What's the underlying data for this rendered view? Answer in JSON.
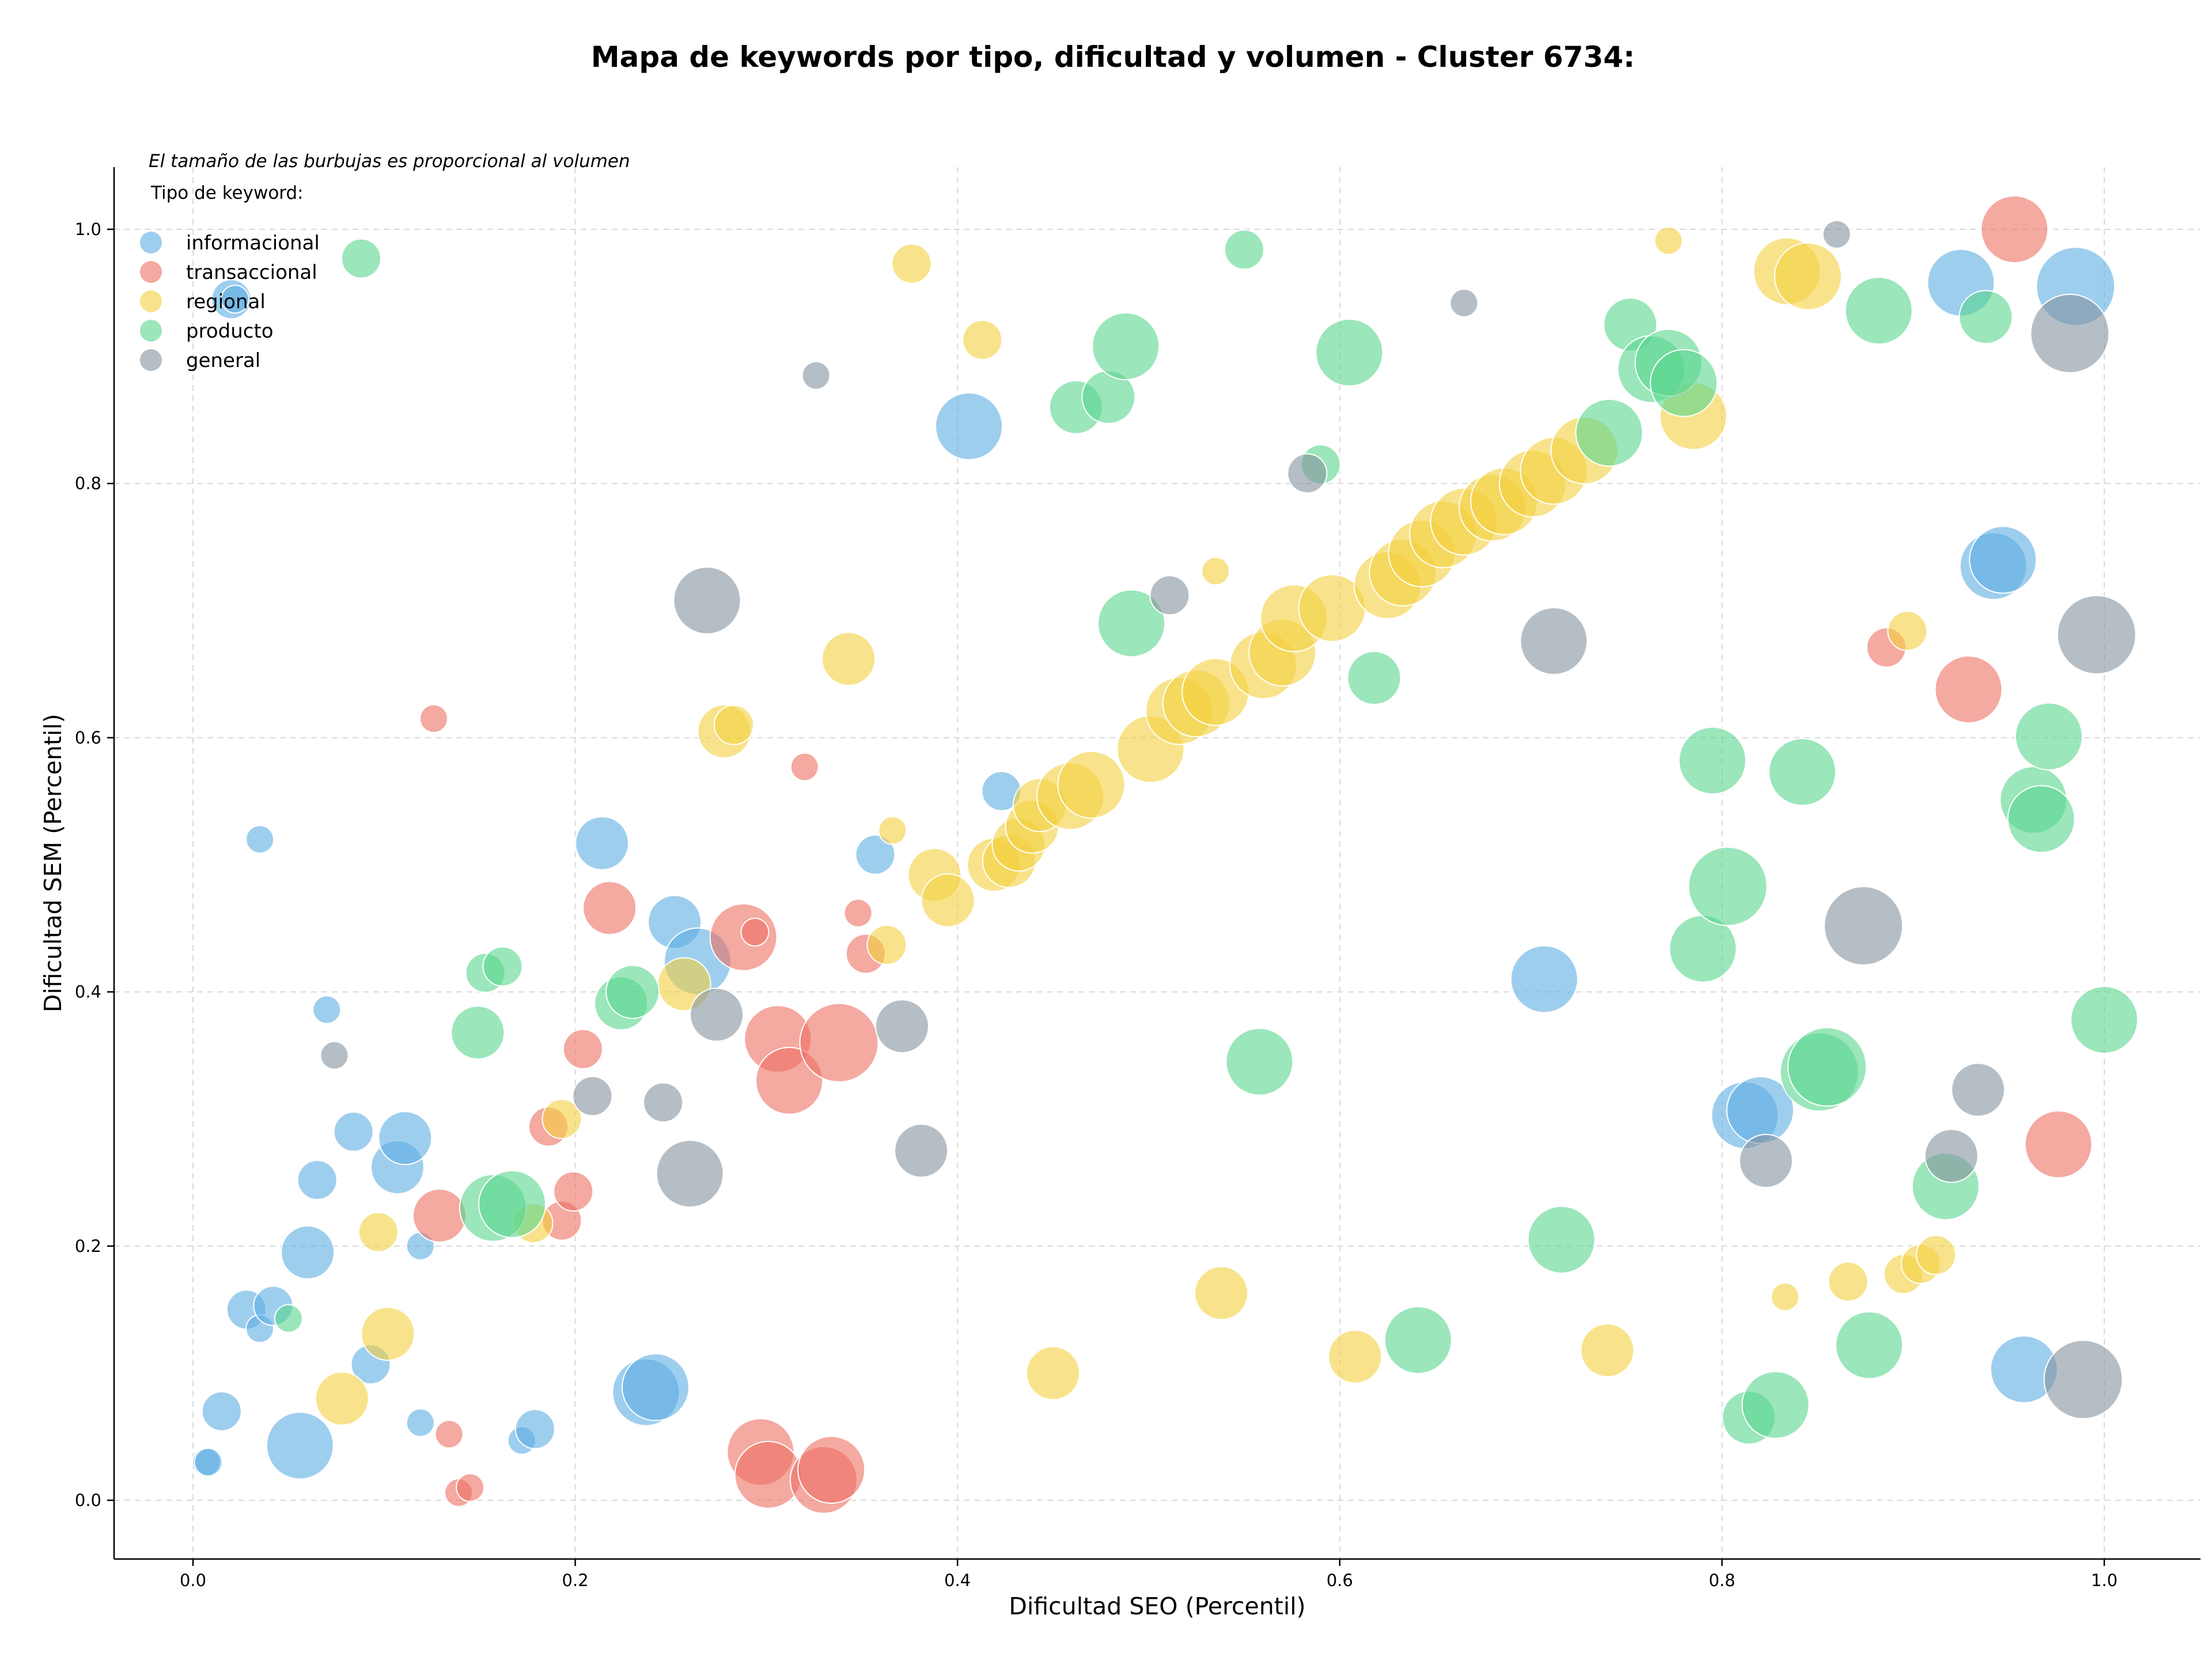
{
  "chart_data": {
    "type": "scatter",
    "title": "Mapa de keywords por tipo, dificultad y volumen - Cluster 6734:",
    "subtitle": "El tamaño de las burbujas es proporcional al volumen",
    "xlabel": "Dificultad SEO (Percentil)",
    "ylabel": "Dificultad SEM (Percentil)",
    "xlim": [
      -0.05,
      1.05
    ],
    "ylim": [
      -0.045,
      1.05
    ],
    "xticks": [
      "0.0",
      "0.2",
      "0.4",
      "0.6",
      "0.8",
      "1.0"
    ],
    "yticks": [
      "0.0",
      "0.2",
      "0.4",
      "0.6",
      "0.8",
      "1.0"
    ],
    "grid": true,
    "legend_title": "Tipo de keyword:",
    "legend_position": "top-left",
    "series": [
      {
        "name": "informacional",
        "color": "#5DADE2",
        "points": [
          [
            0.007,
            0.03,
            1
          ],
          [
            0.008,
            0.03,
            1
          ],
          [
            0.015,
            0.07,
            2
          ],
          [
            0.02,
            0.945,
            2
          ],
          [
            0.022,
            0.945,
            1
          ],
          [
            0.028,
            0.15,
            2
          ],
          [
            0.035,
            0.135,
            1
          ],
          [
            0.035,
            0.52,
            1
          ],
          [
            0.042,
            0.153,
            2
          ],
          [
            0.056,
            0.043,
            4
          ],
          [
            0.06,
            0.195,
            3
          ],
          [
            0.065,
            0.252,
            2
          ],
          [
            0.07,
            0.386,
            1
          ],
          [
            0.084,
            0.29,
            2
          ],
          [
            0.093,
            0.107,
            2
          ],
          [
            0.107,
            0.262,
            3
          ],
          [
            0.111,
            0.285,
            3
          ],
          [
            0.119,
            0.2,
            1
          ],
          [
            0.119,
            0.061,
            1
          ],
          [
            0.172,
            0.047,
            1
          ],
          [
            0.179,
            0.056,
            2
          ],
          [
            0.214,
            0.517,
            3
          ],
          [
            0.237,
            0.085,
            4
          ],
          [
            0.242,
            0.089,
            4
          ],
          [
            0.252,
            0.455,
            3
          ],
          [
            0.264,
            0.424,
            4
          ],
          [
            0.357,
            0.508,
            2
          ],
          [
            0.406,
            0.845,
            4
          ],
          [
            0.423,
            0.558,
            2
          ],
          [
            0.707,
            0.41,
            4
          ],
          [
            0.812,
            0.303,
            4
          ],
          [
            0.82,
            0.307,
            4
          ],
          [
            0.925,
            0.958,
            4
          ],
          [
            0.942,
            0.735,
            4
          ],
          [
            0.947,
            0.74,
            4
          ],
          [
            0.958,
            0.103,
            4
          ],
          [
            0.985,
            0.955,
            5
          ]
        ]
      },
      {
        "name": "transaccional",
        "color": "#EC7063",
        "points": [
          [
            0.126,
            0.615,
            1
          ],
          [
            0.129,
            0.224,
            3
          ],
          [
            0.134,
            0.052,
            1
          ],
          [
            0.139,
            0.006,
            1
          ],
          [
            0.145,
            0.01,
            1
          ],
          [
            0.186,
            0.294,
            2
          ],
          [
            0.193,
            0.22,
            2
          ],
          [
            0.199,
            0.243,
            2
          ],
          [
            0.204,
            0.355,
            2
          ],
          [
            0.218,
            0.466,
            3
          ],
          [
            0.288,
            0.443,
            4
          ],
          [
            0.294,
            0.447,
            1
          ],
          [
            0.297,
            0.038,
            4
          ],
          [
            0.301,
            0.02,
            4
          ],
          [
            0.306,
            0.363,
            4
          ],
          [
            0.312,
            0.33,
            4
          ],
          [
            0.32,
            0.577,
            1
          ],
          [
            0.33,
            0.016,
            4
          ],
          [
            0.334,
            0.024,
            4
          ],
          [
            0.338,
            0.36,
            5
          ],
          [
            0.348,
            0.462,
            1
          ],
          [
            0.352,
            0.43,
            2
          ],
          [
            0.886,
            0.671,
            2
          ],
          [
            0.929,
            0.638,
            4
          ],
          [
            0.953,
            1.0,
            4
          ],
          [
            0.976,
            0.28,
            4
          ]
        ]
      },
      {
        "name": "regional",
        "color": "#F4D03F",
        "points": [
          [
            0.078,
            0.08,
            3
          ],
          [
            0.097,
            0.211,
            2
          ],
          [
            0.102,
            0.131,
            3
          ],
          [
            0.178,
            0.218,
            2
          ],
          [
            0.193,
            0.3,
            2
          ],
          [
            0.257,
            0.406,
            3
          ],
          [
            0.278,
            0.605,
            3
          ],
          [
            0.283,
            0.61,
            2
          ],
          [
            0.343,
            0.662,
            3
          ],
          [
            0.363,
            0.437,
            2
          ],
          [
            0.366,
            0.527,
            1
          ],
          [
            0.376,
            0.973,
            2
          ],
          [
            0.388,
            0.492,
            3
          ],
          [
            0.395,
            0.472,
            3
          ],
          [
            0.413,
            0.913,
            2
          ],
          [
            0.419,
            0.5,
            3
          ],
          [
            0.427,
            0.503,
            3
          ],
          [
            0.432,
            0.516,
            3
          ],
          [
            0.439,
            0.53,
            3
          ],
          [
            0.443,
            0.547,
            3
          ],
          [
            0.45,
            0.1,
            3
          ],
          [
            0.459,
            0.554,
            4
          ],
          [
            0.47,
            0.563,
            4
          ],
          [
            0.501,
            0.591,
            4
          ],
          [
            0.516,
            0.621,
            4
          ],
          [
            0.525,
            0.627,
            4
          ],
          [
            0.535,
            0.636,
            4
          ],
          [
            0.535,
            0.731,
            1
          ],
          [
            0.538,
            0.163,
            3
          ],
          [
            0.56,
            0.657,
            4
          ],
          [
            0.57,
            0.667,
            4
          ],
          [
            0.576,
            0.694,
            4
          ],
          [
            0.596,
            0.702,
            4
          ],
          [
            0.608,
            0.113,
            3
          ],
          [
            0.625,
            0.72,
            4
          ],
          [
            0.633,
            0.73,
            4
          ],
          [
            0.643,
            0.745,
            4
          ],
          [
            0.654,
            0.76,
            4
          ],
          [
            0.665,
            0.77,
            4
          ],
          [
            0.68,
            0.781,
            4
          ],
          [
            0.686,
            0.786,
            4
          ],
          [
            0.701,
            0.8,
            4
          ],
          [
            0.712,
            0.81,
            4
          ],
          [
            0.728,
            0.826,
            4
          ],
          [
            0.74,
            0.118,
            3
          ],
          [
            0.772,
            0.991,
            1
          ],
          [
            0.785,
            0.853,
            4
          ],
          [
            0.834,
            0.967,
            4
          ],
          [
            0.845,
            0.963,
            4
          ],
          [
            0.833,
            0.16,
            1
          ],
          [
            0.866,
            0.172,
            2
          ],
          [
            0.895,
            0.178,
            2
          ],
          [
            0.897,
            0.684,
            2
          ],
          [
            0.904,
            0.186,
            2
          ],
          [
            0.912,
            0.193,
            2
          ]
        ]
      },
      {
        "name": "producto",
        "color": "#58D68D",
        "points": [
          [
            0.05,
            0.143,
            1
          ],
          [
            0.088,
            0.977,
            2
          ],
          [
            0.149,
            0.368,
            3
          ],
          [
            0.153,
            0.415,
            2
          ],
          [
            0.162,
            0.42,
            2
          ],
          [
            0.157,
            0.23,
            4
          ],
          [
            0.167,
            0.233,
            4
          ],
          [
            0.224,
            0.391,
            3
          ],
          [
            0.23,
            0.4,
            3
          ],
          [
            0.462,
            0.86,
            3
          ],
          [
            0.479,
            0.868,
            3
          ],
          [
            0.488,
            0.908,
            4
          ],
          [
            0.491,
            0.69,
            4
          ],
          [
            0.55,
            0.984,
            2
          ],
          [
            0.558,
            0.345,
            4
          ],
          [
            0.59,
            0.815,
            2
          ],
          [
            0.605,
            0.903,
            4
          ],
          [
            0.618,
            0.647,
            3
          ],
          [
            0.641,
            0.126,
            4
          ],
          [
            0.716,
            0.205,
            4
          ],
          [
            0.741,
            0.84,
            4
          ],
          [
            0.752,
            0.925,
            3
          ],
          [
            0.763,
            0.89,
            4
          ],
          [
            0.772,
            0.895,
            4
          ],
          [
            0.78,
            0.879,
            4
          ],
          [
            0.79,
            0.434,
            4
          ],
          [
            0.795,
            0.582,
            4
          ],
          [
            0.803,
            0.483,
            5
          ],
          [
            0.814,
            0.065,
            3
          ],
          [
            0.828,
            0.075,
            4
          ],
          [
            0.842,
            0.573,
            4
          ],
          [
            0.851,
            0.337,
            5
          ],
          [
            0.855,
            0.341,
            5
          ],
          [
            0.877,
            0.122,
            4
          ],
          [
            0.882,
            0.936,
            4
          ],
          [
            0.917,
            0.247,
            4
          ],
          [
            0.938,
            0.931,
            3
          ],
          [
            0.963,
            0.551,
            4
          ],
          [
            0.967,
            0.536,
            4
          ],
          [
            0.971,
            0.601,
            4
          ],
          [
            1.0,
            0.378,
            4
          ]
        ]
      },
      {
        "name": "general",
        "color": "#85929E",
        "points": [
          [
            0.074,
            0.35,
            1
          ],
          [
            0.209,
            0.318,
            2
          ],
          [
            0.246,
            0.313,
            2
          ],
          [
            0.26,
            0.257,
            4
          ],
          [
            0.269,
            0.708,
            4
          ],
          [
            0.274,
            0.382,
            3
          ],
          [
            0.326,
            0.885,
            1
          ],
          [
            0.371,
            0.373,
            3
          ],
          [
            0.381,
            0.275,
            3
          ],
          [
            0.511,
            0.712,
            2
          ],
          [
            0.583,
            0.808,
            2
          ],
          [
            0.665,
            0.942,
            1
          ],
          [
            0.712,
            0.676,
            4
          ],
          [
            0.823,
            0.267,
            3
          ],
          [
            0.86,
            0.996,
            1
          ],
          [
            0.874,
            0.452,
            5
          ],
          [
            0.92,
            0.271,
            3
          ],
          [
            0.934,
            0.323,
            3
          ],
          [
            0.982,
            0.918,
            5
          ],
          [
            0.989,
            0.095,
            5
          ],
          [
            0.996,
            0.681,
            5
          ]
        ]
      }
    ]
  }
}
